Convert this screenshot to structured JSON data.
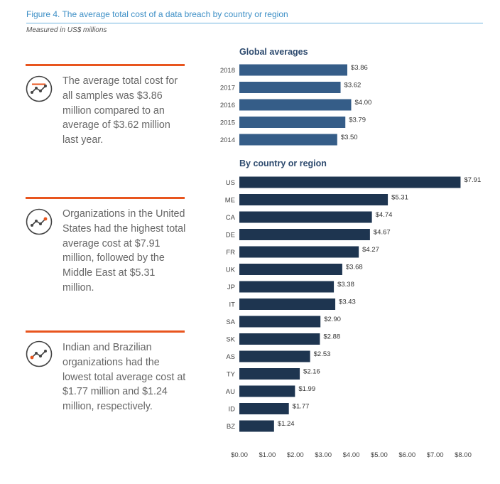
{
  "figure": {
    "title": "Figure 4. The average total cost of a data breach by country or region",
    "subtitle": "Measured in US$ millions"
  },
  "callouts": [
    {
      "text": "The average total cost for all samples was $3.86 million compared to an average of $3.62 million last year.",
      "icon": "trend-line-icon"
    },
    {
      "text": "Organizations in the United States had the highest total average cost at $7.91 million, followed by the Middle East at $5.31 million.",
      "icon": "trend-line-up-icon"
    },
    {
      "text": "Indian and Brazilian organizations had the lowest total average cost at $1.77 million and $1.24 million, respectively.",
      "icon": "trend-line-low-icon"
    }
  ],
  "colors": {
    "global_bar": "#355d88",
    "country_bar": "#1e3550",
    "accent": "#e8551e",
    "title": "#3d8fc6"
  },
  "chart_data": {
    "type": "bar",
    "orientation": "horizontal",
    "unit": "US$ millions",
    "xlim": [
      0,
      8
    ],
    "x_ticks": [
      "$0.00",
      "$1.00",
      "$2.00",
      "$3.00",
      "$4.00",
      "$5.00",
      "$6.00",
      "$7.00",
      "$8.00"
    ],
    "sections": [
      {
        "title": "Global averages",
        "categories": [
          "2018",
          "2017",
          "2016",
          "2015",
          "2014"
        ],
        "values": [
          3.86,
          3.62,
          4.0,
          3.79,
          3.5
        ],
        "labels": [
          "$3.86",
          "$3.62",
          "$4.00",
          "$3.79",
          "$3.50"
        ]
      },
      {
        "title": "By country or region",
        "categories": [
          "US",
          "ME",
          "CA",
          "DE",
          "FR",
          "UK",
          "JP",
          "IT",
          "SA",
          "SK",
          "AS",
          "TY",
          "AU",
          "ID",
          "BZ"
        ],
        "values": [
          7.91,
          5.31,
          4.74,
          4.67,
          4.27,
          3.68,
          3.38,
          3.43,
          2.9,
          2.88,
          2.53,
          2.16,
          1.99,
          1.77,
          1.24
        ],
        "labels": [
          "$7.91",
          "$5.31",
          "$4.74",
          "$4.67",
          "$4.27",
          "$3.68",
          "$3.38",
          "$3.43",
          "$2.90",
          "$2.88",
          "$2.53",
          "$2.16",
          "$1.99",
          "$1.77",
          "$1.24"
        ]
      }
    ]
  }
}
